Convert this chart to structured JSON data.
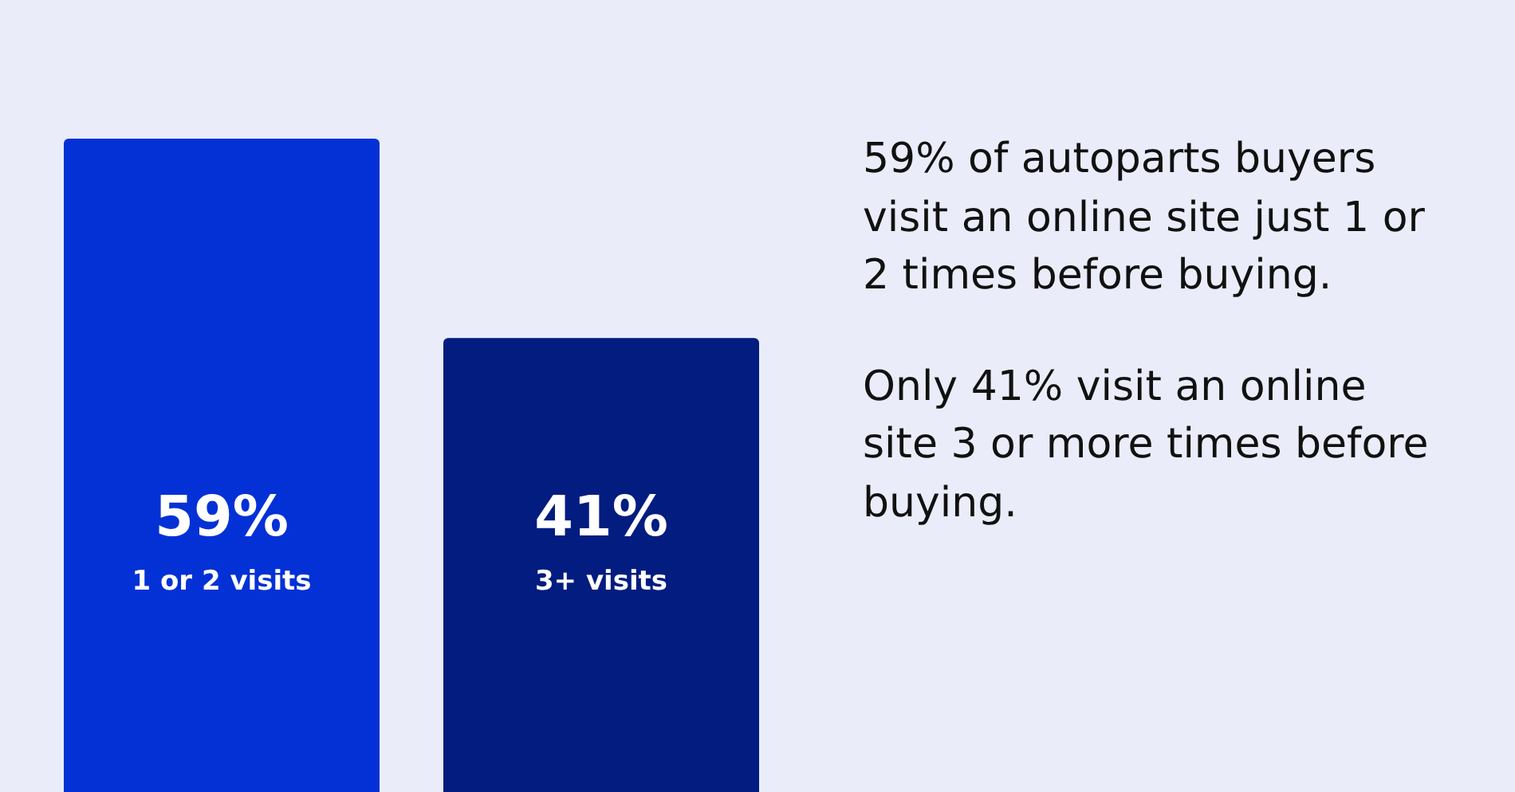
{
  "chart_data": {
    "type": "bar",
    "categories": [
      "1 or 2 visits",
      "3+ visits"
    ],
    "values": [
      59,
      41
    ],
    "colors": [
      "#0431d6",
      "#021c80"
    ],
    "value_labels": [
      "59%",
      "41%"
    ],
    "annotations": [
      "59% of autoparts buyers visit an online site just 1 or 2 times before buying.",
      "Only 41% visit an online site 3 or more times before buying."
    ]
  }
}
